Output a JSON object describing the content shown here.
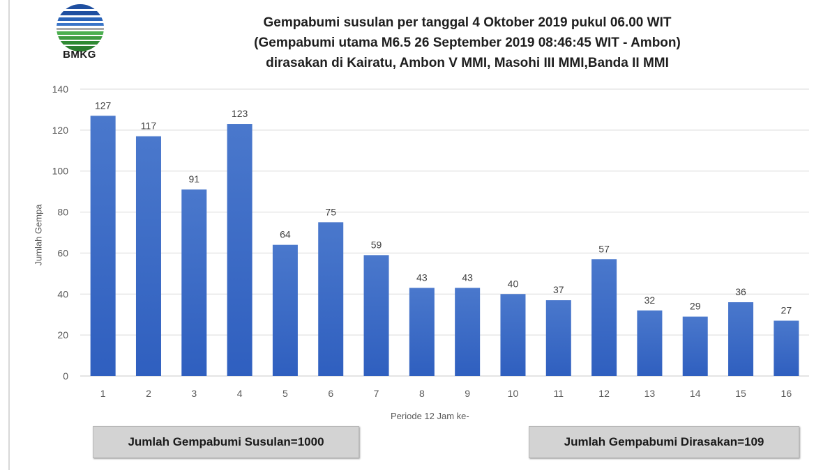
{
  "logo": {
    "text": "BMKG",
    "icon": "bmkg-logo-icon"
  },
  "title": {
    "line1": "Gempabumi susulan per tanggal 4 Oktober 2019 pukul 06.00 WIT",
    "line2": "(Gempabumi utama M6.5 26 September 2019 08:46:45 WIT - Ambon)",
    "line3": "dirasakan di Kairatu, Ambon V MMI, Masohi III MMI,Banda II MMI"
  },
  "summary": {
    "susulan": "Jumlah Gempabumi Susulan=1000",
    "dirasakan": "Jumlah Gempabumi Dirasakan=109"
  },
  "colors": {
    "bar": "#4472c4",
    "grid": "#d9d9d9",
    "text": "#595959"
  },
  "chart_data": {
    "type": "bar",
    "title": "Gempabumi susulan per tanggal 4 Oktober 2019 pukul 06.00 WIT (Gempabumi utama M6.5 26 September 2019 08:46:45 WIT - Ambon) dirasakan di Kairatu, Ambon V MMI, Masohi III MMI,Banda II MMI",
    "xlabel": "Periode 12 Jam ke-",
    "ylabel": "Jumlah Gempa",
    "categories": [
      "1",
      "2",
      "3",
      "4",
      "5",
      "6",
      "7",
      "8",
      "9",
      "10",
      "11",
      "12",
      "13",
      "14",
      "15",
      "16"
    ],
    "values": [
      127,
      117,
      91,
      123,
      64,
      75,
      59,
      43,
      43,
      40,
      37,
      57,
      32,
      29,
      36,
      27
    ],
    "ylim": [
      0,
      140
    ],
    "yticks": [
      0,
      20,
      40,
      60,
      80,
      100,
      120,
      140
    ],
    "grid": true,
    "data_labels": true,
    "legend": "none"
  }
}
